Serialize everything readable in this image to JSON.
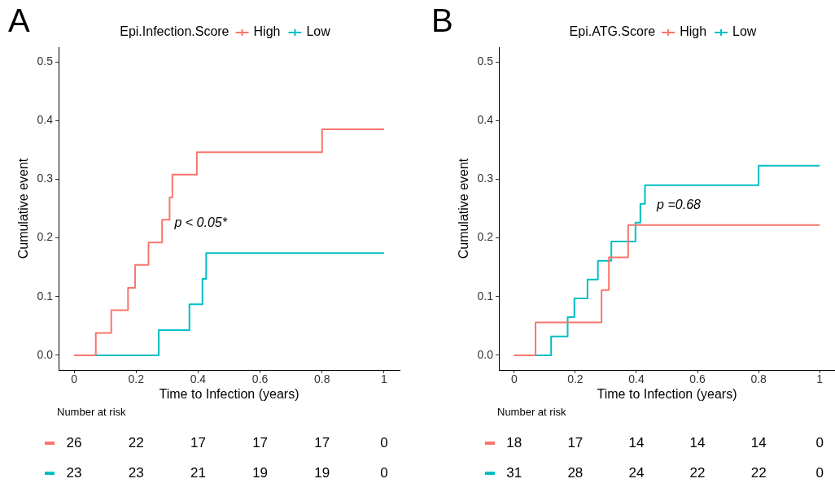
{
  "chart_data": [
    {
      "type": "step",
      "title": "A",
      "legend_title": "Epi.Infection.Score",
      "legend": "top",
      "xlabel": "Time to Infection (years)",
      "ylabel": "Cumulative event",
      "xlim": [
        -0.05,
        1.05
      ],
      "xticks": [
        0,
        0.2,
        0.4,
        0.6,
        0.8,
        1
      ],
      "ylim": [
        -0.025,
        0.525
      ],
      "yticks": [
        {
          "value": 0,
          "label": "0.0"
        },
        {
          "value": 0.1,
          "label": "0.1"
        },
        {
          "value": 0.2,
          "label": "0.2"
        },
        {
          "value": 0.3,
          "label": "0.3"
        },
        {
          "value": 0.4,
          "label": "0.4"
        },
        {
          "value": 0.5,
          "label": "0.5"
        }
      ],
      "grid": false,
      "annotations": [
        "p < 0.05*"
      ],
      "series": [
        {
          "name": "High",
          "color": "#f8766d",
          "x": [
            0,
            0.07,
            0.12,
            0.174,
            0.197,
            0.24,
            0.284,
            0.308,
            0.317,
            0.396,
            0.8,
            1
          ],
          "values": [
            0,
            0.038,
            0.077,
            0.115,
            0.154,
            0.192,
            0.231,
            0.269,
            0.308,
            0.346,
            0.385,
            0.385
          ]
        },
        {
          "name": "Low",
          "color": "#00bfc4",
          "x": [
            0,
            0.273,
            0.372,
            0.414,
            0.426,
            1
          ],
          "values": [
            0,
            0.043,
            0.087,
            0.13,
            0.174,
            0.174
          ]
        }
      ]
    },
    {
      "type": "other",
      "title": "Number at risk",
      "annotations": [
        "26",
        "22",
        "17",
        "17",
        "17",
        "0",
        "23",
        "23",
        "21",
        "19",
        "19",
        "0"
      ]
    },
    {
      "type": "step",
      "title": "B",
      "legend_title": "Epi.ATG.Score",
      "legend": "top",
      "xlabel": "Time to Infection (years)",
      "ylabel": "Cumulative event",
      "xlim": [
        -0.05,
        1.05
      ],
      "xticks": [
        0,
        0.2,
        0.4,
        0.6,
        0.8,
        1
      ],
      "ylim": [
        -0.025,
        0.525
      ],
      "yticks": [
        {
          "value": 0,
          "label": "0.0"
        },
        {
          "value": 0.1,
          "label": "0.1"
        },
        {
          "value": 0.2,
          "label": "0.2"
        },
        {
          "value": 0.3,
          "label": "0.3"
        },
        {
          "value": 0.4,
          "label": "0.4"
        },
        {
          "value": 0.5,
          "label": "0.5"
        }
      ],
      "grid": false,
      "annotations": [
        "p =0.68"
      ],
      "series": [
        {
          "name": "High",
          "color": "#f8766d",
          "x": [
            0,
            0.07,
            0.286,
            0.31,
            0.373,
            1
          ],
          "values": [
            0,
            0.056,
            0.111,
            0.167,
            0.222,
            0.222
          ]
        },
        {
          "name": "Low",
          "color": "#00bfc4",
          "x": [
            0,
            0.121,
            0.175,
            0.197,
            0.24,
            0.274,
            0.318,
            0.397,
            0.413,
            0.428,
            0.8,
            1
          ],
          "values": [
            0,
            0.032,
            0.065,
            0.097,
            0.129,
            0.161,
            0.194,
            0.226,
            0.258,
            0.29,
            0.323,
            0.323
          ]
        }
      ]
    },
    {
      "type": "other",
      "title": "Number at risk",
      "annotations": [
        "18",
        "17",
        "14",
        "14",
        "14",
        "0",
        "31",
        "28",
        "24",
        "22",
        "22",
        "0"
      ]
    }
  ]
}
